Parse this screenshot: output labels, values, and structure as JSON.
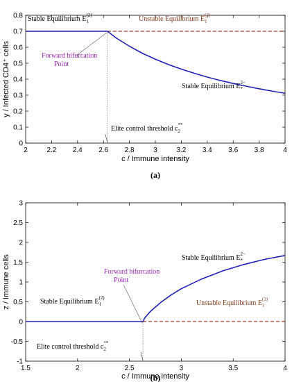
{
  "chart_data": [
    {
      "type": "line",
      "panel_label": "(a)",
      "xlabel": "c / Immune intensity",
      "ylabel": "y / Infected CD4⁺ cells",
      "xlim": [
        2,
        4
      ],
      "ylim": [
        0,
        0.8
      ],
      "xticks": [
        2,
        2.2,
        2.4,
        2.6,
        2.8,
        3,
        3.2,
        3.4,
        3.6,
        3.8,
        4
      ],
      "xtick_labels": [
        "2",
        "2.2",
        "2.4",
        "2.6",
        "2.8",
        "3",
        "3.2",
        "3.4",
        "3.6",
        "3.8",
        "4"
      ],
      "yticks": [
        0,
        0.1,
        0.2,
        0.3,
        0.4,
        0.5,
        0.6,
        0.7,
        0.8
      ],
      "ytick_labels": [
        "0",
        "0.1",
        "0.2",
        "0.3",
        "0.4",
        "0.5",
        "0.6",
        "0.7",
        "0.8"
      ],
      "threshold_x": 2.63,
      "series": [
        {
          "style": "solid",
          "color": "#1f1fbf",
          "x": [
            2,
            2.63
          ],
          "y": [
            0.7,
            0.7
          ]
        },
        {
          "style": "dashed",
          "color": "#8b3a1a",
          "x": [
            2.63,
            4
          ],
          "y": [
            0.7,
            0.7
          ]
        },
        {
          "style": "solid",
          "color": "#1f1fbf",
          "x": [
            2.63,
            2.7,
            2.8,
            2.9,
            3.0,
            3.1,
            3.2,
            3.3,
            3.4,
            3.5,
            3.6,
            3.7,
            3.8,
            3.9,
            4.0
          ],
          "y": [
            0.7,
            0.657,
            0.606,
            0.562,
            0.525,
            0.492,
            0.463,
            0.437,
            0.413,
            0.392,
            0.373,
            0.356,
            0.34,
            0.325,
            0.312
          ]
        }
      ],
      "annotations": {
        "stable_left": {
          "text": "Stable Equilibrium E",
          "sub": "1",
          "sup": "(2)"
        },
        "unstable": {
          "text": "Unstable Equilibrium E",
          "sub": "1",
          "sup": "(2)"
        },
        "stable_curve": {
          "text": "Stable Equilibrium E",
          "sub": "*",
          "sup": "2−"
        },
        "bifurcation": [
          "Forward bifurcation",
          "Point"
        ],
        "threshold": {
          "text": "Elite control threshold c",
          "sub": "2",
          "sup": "**"
        }
      }
    },
    {
      "type": "line",
      "panel_label": "(b)",
      "xlabel": "c / Immune intensity",
      "ylabel": "z / Immune cells",
      "xlim": [
        1.5,
        4
      ],
      "ylim": [
        -1,
        3
      ],
      "xticks": [
        1.5,
        2,
        2.5,
        3,
        3.5,
        4
      ],
      "xtick_labels": [
        "1.5",
        "2",
        "2.5",
        "3",
        "3.5",
        "4"
      ],
      "yticks": [
        -1,
        -0.5,
        0,
        0.5,
        1,
        1.5,
        2,
        2.5,
        3
      ],
      "ytick_labels": [
        "-1",
        "-0.5",
        "0",
        "0.5",
        "1",
        "1.5",
        "2",
        "2.5",
        "3"
      ],
      "threshold_x": 2.63,
      "series": [
        {
          "style": "solid",
          "color": "#1f1fbf",
          "x": [
            1.5,
            2.63
          ],
          "y": [
            0,
            0
          ]
        },
        {
          "style": "dashed",
          "color": "#8b3a1a",
          "x": [
            2.63,
            4
          ],
          "y": [
            0,
            0
          ]
        },
        {
          "style": "solid",
          "color": "#1f1fbf",
          "x": [
            2.63,
            2.65,
            2.7,
            2.8,
            2.9,
            3.0,
            3.2,
            3.4,
            3.6,
            3.8,
            4.0
          ],
          "y": [
            0,
            0.1,
            0.25,
            0.48,
            0.67,
            0.83,
            1.08,
            1.28,
            1.44,
            1.57,
            1.67
          ]
        }
      ],
      "annotations": {
        "stable_left": {
          "text": "Stable Equilibrium E",
          "sub": "1",
          "sup": "(2)"
        },
        "unstable": {
          "text": "Unstable Equilibrium E",
          "sub": "1",
          "sup": "(2)"
        },
        "stable_curve": {
          "text": "Stable Equilibrium E",
          "sub": "*",
          "sup": "2−"
        },
        "bifurcation": [
          "Forward bifurcation",
          "Point"
        ],
        "threshold": {
          "text": "Elite control threshold c",
          "sub": "2",
          "sup": "**"
        }
      }
    }
  ]
}
